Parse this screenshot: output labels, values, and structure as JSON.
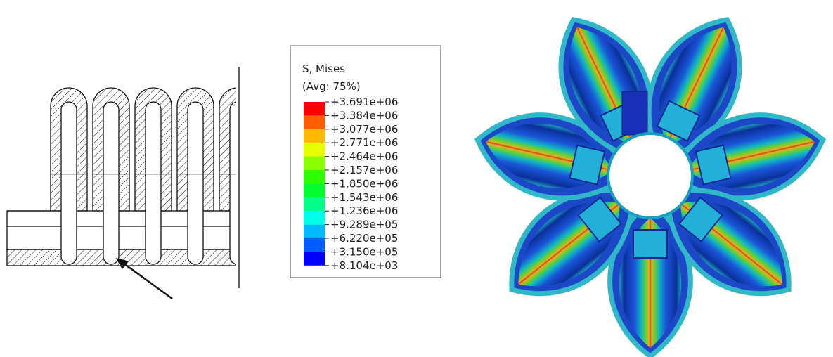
{
  "legend": {
    "title": "S, Mises",
    "subtitle": "(Avg: 75%)",
    "labels": [
      "+3.691e+06",
      "+3.384e+06",
      "+3.077e+06",
      "+2.771e+06",
      "+2.464e+06",
      "+2.157e+06",
      "+1.850e+06",
      "+1.543e+06",
      "+1.236e+06",
      "+9.289e+05",
      "+6.220e+05",
      "+3.150e+05",
      "+8.104e+03"
    ],
    "colors": [
      "#ff0000",
      "#ff5d00",
      "#ffb900",
      "#e8ff00",
      "#8bff00",
      "#2eff00",
      "#00ff2e",
      "#00ff8b",
      "#00ffe8",
      "#00b9ff",
      "#005dff",
      "#0000ff"
    ]
  }
}
